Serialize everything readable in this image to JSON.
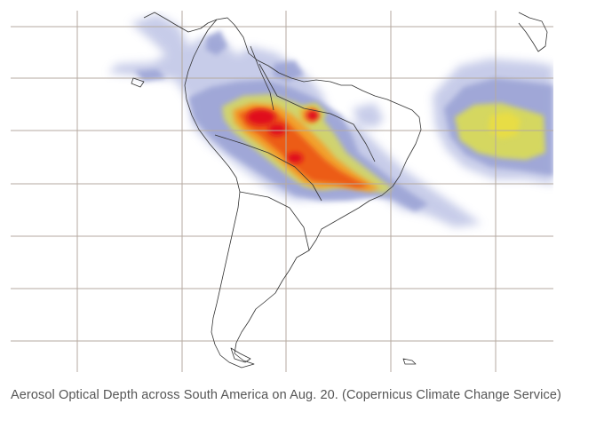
{
  "caption": {
    "text": "Aerosol Optical Depth across South America on Aug. 20. (Copernicus Climate Change Service)"
  },
  "map": {
    "subject": "Aerosol Optical Depth",
    "region": "South America",
    "date": "Aug. 20",
    "source": "Copernicus Climate Change Service",
    "colors": {
      "low": "#9aa3d4",
      "low_mid": "#c2c8e6",
      "mid": "#cfd56e",
      "mid_high": "#e8d84a",
      "high": "#f19a2b",
      "higher": "#ec5b17",
      "highest": "#e0101c",
      "coastline": "#333333",
      "gridline": "#b5aaa0"
    }
  }
}
